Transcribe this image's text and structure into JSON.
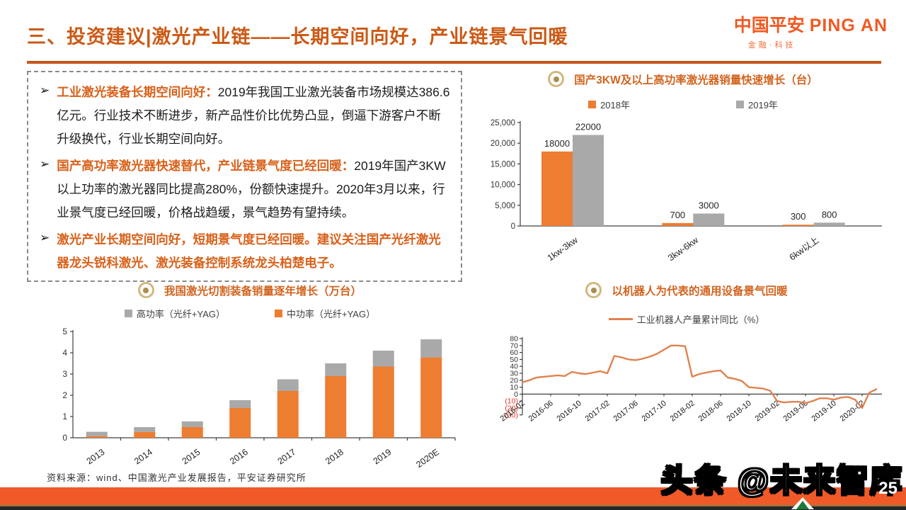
{
  "header": {
    "title": "三、投资建议|激光产业链——长期空间向好，产业链景气回暖"
  },
  "logo": {
    "cn": "中国平安",
    "en": "PING AN",
    "sub": "金融·科技"
  },
  "bullet_marker": "➢",
  "bullets": [
    {
      "lead": "工业激光装备长期空间向好：",
      "body": "2019年我国工业激光装备市场规模达386.6亿元。行业技术不断进步，新产品性价比优势凸显，倒逼下游客户不断升级换代，行业长期空间向好。"
    },
    {
      "lead": "国产高功率激光器快速替代，产业链景气度已经回暖：",
      "body": "2019年国产3KW以上功率的激光器同比提高280%，份额快速提升。2020年3月以来，行业景气度已经回暖，价格战趋缓，景气趋势有望持续。"
    },
    {
      "lead": "激光产业长期空间向好，短期景气度已经回暖。建议关注国产光纤激光器龙头锐科激光、激光装备控制系统龙头柏楚电子。",
      "body": ""
    }
  ],
  "colors": {
    "accent_orange": "#d2641f",
    "bar_orange": "#ed7d31",
    "bar_gray": "#a9a9a9",
    "line_orange": "#e0824e",
    "footer_orange": "#f05a28",
    "negative_red": "#e03428",
    "bullseye_gold": "#a98e4d"
  },
  "chart_data": [
    {
      "id": "power_laser_sales",
      "type": "bar",
      "title": "国产3KW及以上高功率激光器销量快速增长（台）",
      "categories": [
        "1kw-3kw",
        "3kw-6kw",
        "6kw以上"
      ],
      "series": [
        {
          "name": "2018年",
          "color": "#ed7d31",
          "values": [
            18000,
            700,
            300
          ]
        },
        {
          "name": "2019年",
          "color": "#a9a9a9",
          "values": [
            22000,
            3000,
            800
          ]
        }
      ],
      "data_labels": [
        [
          "18000",
          "700",
          "300"
        ],
        [
          "22000",
          "3000",
          "800"
        ]
      ],
      "ylim": [
        0,
        25000
      ],
      "yticks": [
        0,
        5000,
        10000,
        15000,
        20000,
        25000
      ],
      "grid": false,
      "legend_position": "top"
    },
    {
      "id": "laser_cutting_equipment",
      "type": "stacked-bar",
      "title": "我国激光切割装备销量逐年增长（万台）",
      "categories": [
        "2013",
        "2014",
        "2015",
        "2016",
        "2017",
        "2018",
        "2019",
        "2020E"
      ],
      "series": [
        {
          "name": "高功率（光纤+YAG）",
          "color": "#a9a9a9",
          "values": [
            0.21,
            0.23,
            0.27,
            0.37,
            0.55,
            0.6,
            0.75,
            0.85
          ]
        },
        {
          "name": "中功率（光纤+YAG）",
          "color": "#ed7d31",
          "values": [
            0.07,
            0.27,
            0.5,
            1.4,
            2.2,
            2.9,
            3.35,
            3.78
          ]
        }
      ],
      "stack_bottom_index": 1,
      "ylim": [
        0,
        5
      ],
      "yticks": [
        0,
        1,
        2,
        3,
        4,
        5
      ],
      "grid": false,
      "legend_position": "top"
    },
    {
      "id": "industrial_robot_yoy",
      "type": "line",
      "title": "以机器人为代表的通用设备景气回暖",
      "legend": "工业机器人产量累计同比（%）",
      "color": "#e0824e",
      "x_monthly_start": "2016-02",
      "x_ticks": [
        "2016-02",
        "2016-06",
        "2016-10",
        "2017-02",
        "2017-06",
        "2017-10",
        "2018-02",
        "2018-06",
        "2018-10",
        "2019-02",
        "2019-06",
        "2019-10",
        "2020-02"
      ],
      "tick_every": 4,
      "values": [
        17,
        20,
        24,
        25,
        26,
        27,
        26,
        32,
        30,
        29,
        31,
        33,
        30,
        55,
        53,
        50,
        49,
        51,
        54,
        58,
        64,
        70,
        70,
        69,
        25,
        29,
        31,
        33,
        34,
        24,
        22,
        19,
        10,
        9,
        8,
        5,
        -10,
        -12,
        -11,
        -11,
        -13,
        -10,
        -6,
        -6,
        -8,
        -5,
        -4,
        -8,
        -20,
        2,
        7
      ],
      "ylim": [
        -30,
        80
      ],
      "ytick_step": 10,
      "negative_label_format": "parentheses",
      "grid": false,
      "legend_position": "top"
    }
  ],
  "source": "资料来源：wind、中国激光产业发展报告，平安证券研究所",
  "watermark": "头条 @未来智库",
  "page_number": "25"
}
